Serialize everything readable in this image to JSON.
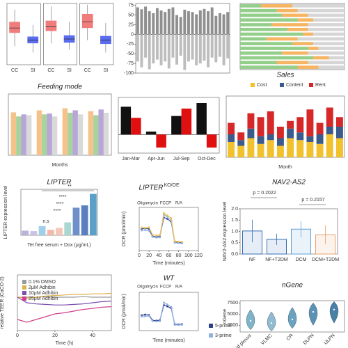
{
  "chart_data": [
    {
      "type": "box",
      "categories": [
        "CC",
        "SI",
        "CC",
        "SI",
        "CC",
        "SI"
      ],
      "colors": [
        "#f07c7c",
        "#5a6cf0"
      ],
      "ylim": [
        0,
        10
      ],
      "boxes": [
        {
          "min": 3,
          "q1": 5.2,
          "median": 6,
          "q3": 7,
          "max": 9
        },
        {
          "min": 2,
          "q1": 3.5,
          "median": 4,
          "q3": 4.6,
          "max": 6.5
        },
        {
          "min": 3.5,
          "q1": 5.5,
          "median": 6.2,
          "q3": 7.2,
          "max": 9.5
        },
        {
          "min": 2.5,
          "q1": 3.6,
          "median": 4.2,
          "q3": 4.8,
          "max": 7
        },
        {
          "min": 4,
          "q1": 6,
          "median": 7,
          "q3": 8.3,
          "max": 9.8
        },
        {
          "min": 2,
          "q1": 3.4,
          "median": 4,
          "q3": 4.7,
          "max": 6.8
        }
      ]
    },
    {
      "type": "bar",
      "stacked": true,
      "categories": [
        null,
        null,
        null,
        null,
        null,
        null,
        null,
        null,
        null,
        null,
        null,
        null,
        null,
        null,
        null,
        null,
        null,
        null,
        null,
        null,
        null,
        null,
        null,
        null
      ],
      "series": [
        {
          "color": "#8f8f8f",
          "values": [
            70,
            65,
            72,
            60,
            55,
            68,
            62,
            58,
            66,
            70,
            50,
            45,
            64,
            60,
            58,
            52,
            62,
            66,
            60,
            70,
            48,
            55,
            52,
            58
          ]
        },
        {
          "color": "#bdbdbd",
          "values": [
            -70,
            -85,
            -60,
            -90,
            -75,
            -65,
            -80,
            -70,
            -88,
            -60,
            -78,
            -55,
            -92,
            -70,
            -65,
            -80,
            -75,
            -68,
            -85,
            -60,
            -72,
            -58,
            -80,
            -62
          ]
        }
      ],
      "ylim": [
        -100,
        80
      ],
      "yticks": [
        75,
        50,
        25,
        0,
        -25,
        -50,
        -75,
        -100
      ]
    },
    {
      "type": "bar",
      "stacked": true,
      "horizontal": true,
      "categories": [
        null,
        null,
        null,
        null,
        null,
        null,
        null,
        null,
        null,
        null,
        null,
        null,
        null,
        null
      ],
      "xlim": [
        0,
        100
      ],
      "series": [
        {
          "color": "#93cf8a",
          "values": [
            20,
            35,
            40,
            55,
            30,
            45,
            60,
            25,
            50,
            65,
            40,
            70,
            35,
            55
          ]
        },
        {
          "color": "#f5b562",
          "values": [
            30,
            20,
            25,
            15,
            35,
            20,
            10,
            30,
            20,
            10,
            25,
            15,
            30,
            20
          ]
        },
        {
          "color": "#d6d6d6",
          "values": [
            50,
            45,
            35,
            30,
            35,
            35,
            30,
            45,
            30,
            25,
            35,
            15,
            35,
            25
          ]
        }
      ]
    },
    {
      "type": "bar",
      "title": "Feeding mode",
      "x_label": "Months",
      "categories": [
        null,
        null,
        null,
        null
      ],
      "ylim": [
        0,
        150
      ],
      "series": [
        {
          "color": "#f6c28b",
          "values": [
            105,
            110,
            115,
            108
          ]
        },
        {
          "color": "#a9d39e",
          "values": [
            95,
            100,
            104,
            98
          ]
        },
        {
          "color": "#b8a6d9",
          "values": [
            100,
            102,
            110,
            112
          ]
        },
        {
          "color": "#d9d9d9",
          "values": [
            98,
            95,
            100,
            104
          ]
        }
      ]
    },
    {
      "type": "bar",
      "categories": [
        "Jan-Mar",
        "Apr-Jun",
        "Jul-Sep",
        "Oct-Dec"
      ],
      "ylim": [
        -0.5,
        1
      ],
      "series": [
        {
          "color": "#111111",
          "values": [
            0.75,
            0.08,
            0.5,
            0.85
          ]
        },
        {
          "color": "#e01010",
          "values": [
            0.45,
            -0.35,
            0.7,
            -0.35
          ]
        }
      ]
    },
    {
      "type": "bar",
      "stacked": true,
      "title": "Sales",
      "x_label": "Month",
      "categories": [
        null,
        null,
        null,
        null,
        null,
        null,
        null,
        null,
        null,
        null,
        null,
        null
      ],
      "ylim": [
        0,
        1600
      ],
      "series": [
        {
          "name": "Cost",
          "color": "#f2c12e",
          "values": [
            400,
            300,
            500,
            350,
            450,
            300,
            500,
            450,
            400,
            350,
            600,
            500
          ]
        },
        {
          "name": "Content",
          "color": "#3b5b8c",
          "values": [
            200,
            150,
            250,
            200,
            150,
            200,
            250,
            200,
            150,
            250,
            200,
            300
          ]
        },
        {
          "name": "Rent",
          "color": "#d62828",
          "values": [
            300,
            200,
            400,
            500,
            600,
            300,
            200,
            400,
            700,
            300,
            500,
            250
          ]
        }
      ]
    },
    {
      "type": "bar",
      "title": "LIPTER",
      "y_label": "LIPTER expression level",
      "x_label": "Tet free serum + Dox (μg/mL)",
      "categories": [
        null,
        null,
        null,
        null,
        null,
        null,
        null,
        null,
        null
      ],
      "values": [
        1,
        0.9,
        2,
        1.2,
        1.6,
        2.8,
        6,
        6.5,
        9
      ],
      "colors": [
        "#b9b3d9",
        "#c9c4e6",
        "#9fd0e8",
        "#f2b8a8",
        "#f4c7b8",
        "#a8d8d0",
        "#6f8fc8",
        "#5a7fc0",
        "#5aa0c8"
      ],
      "ylim": [
        0,
        10
      ],
      "annotations": [
        "**",
        "****",
        "****",
        "****",
        "n.s"
      ]
    },
    {
      "type": "line",
      "title": "LIPTER",
      "title_sup": "KO/OE",
      "y_label": "OCR (pmol/min)",
      "x_label": "Time (minutes)",
      "annotations": [
        "Oligomycin",
        "FCCP",
        "R/A"
      ],
      "xlim": [
        0,
        120
      ],
      "xticks": [
        0,
        20,
        40,
        60,
        80,
        100,
        120
      ],
      "ylim": [
        0,
        300
      ],
      "x": [
        5,
        12,
        20,
        27,
        35,
        42,
        50,
        57,
        65,
        72,
        80,
        87
      ],
      "series": [
        {
          "color": "#3a4fa0",
          "values": [
            150,
            155,
            150,
            100,
            95,
            100,
            230,
            220,
            200,
            60,
            55,
            58
          ]
        },
        {
          "color": "#8fb0e0",
          "values": [
            140,
            142,
            138,
            95,
            90,
            92,
            250,
            235,
            210,
            55,
            52,
            50
          ]
        },
        {
          "color": "#f2c14e",
          "values": [
            160,
            158,
            162,
            110,
            105,
            108,
            260,
            245,
            225,
            65,
            62,
            60
          ]
        }
      ]
    },
    {
      "type": "bar",
      "title": "NAV2-AS2",
      "y_label": "NAV2-AS2 expression level",
      "annotations": [
        "p = 0.2022",
        "p = 0.2157"
      ],
      "categories": [
        "NF",
        "NF+T2DM",
        "DCM",
        "DCM+T2DM"
      ],
      "values": [
        1.02,
        0.65,
        1.1,
        0.85
      ],
      "errors": [
        0.5,
        0.25,
        0.35,
        0.42
      ],
      "colors": [
        "#2f6db5",
        "#2f6db5",
        "#5aa0d8",
        "#e6a06a"
      ],
      "ylim": [
        0,
        2
      ],
      "yticks": [
        {
          "value": 0,
          "label": "0.0"
        },
        {
          "value": 0.5,
          "label": "0.5"
        },
        {
          "value": 1,
          "label": "1.0"
        },
        {
          "value": 1.5,
          "label": "1.5"
        },
        {
          "value": 2,
          "label": "2.0"
        }
      ]
    },
    {
      "type": "line",
      "y_label": "relative TEER (CaCO-2)",
      "x_label": "Time (h)",
      "xlim": [
        0,
        50
      ],
      "xticks": [
        0,
        20,
        40
      ],
      "ylim": [
        0.4,
        1.4
      ],
      "x": [
        0,
        5,
        10,
        15,
        20,
        25,
        30,
        35,
        40,
        45,
        50
      ],
      "series": [
        {
          "name": "0.1% DMSO",
          "color": "#9a9a9a",
          "values": [
            1,
            1,
            1,
            1.01,
            1,
            1,
            1,
            1.01,
            1,
            1,
            1
          ]
        },
        {
          "name": "2μM Adhibin",
          "color": "#e0b04a",
          "values": [
            1,
            0.98,
            1,
            1.02,
            1.03,
            1.04,
            1.05,
            1.05,
            1.06,
            1.06,
            1.07
          ]
        },
        {
          "name": "10μM Adhibin",
          "color": "#7a4fb0",
          "values": [
            1,
            0.9,
            0.88,
            0.87,
            0.86,
            0.86,
            0.87,
            0.88,
            0.9,
            0.92,
            0.93
          ]
        },
        {
          "name": "25μM Adhibin",
          "color": "#d0408a",
          "values": [
            0.6,
            0.55,
            0.6,
            0.65,
            0.7,
            0.72,
            0.75,
            0.78,
            0.8,
            0.82,
            0.83
          ]
        }
      ]
    },
    {
      "type": "line",
      "title": "WT",
      "y_label": "OCR (pmol/min)",
      "x_label": "Time (minutes)",
      "annotations": [
        "Oligomycin",
        "FCCP",
        "R/A"
      ],
      "xlim": [
        0,
        120
      ],
      "ylim": [
        0,
        300
      ],
      "x": [
        5,
        12,
        20,
        27,
        35,
        42,
        50,
        57,
        65,
        72,
        80,
        87
      ],
      "series": [
        {
          "name": "5-prime",
          "color": "#2c3e8c",
          "values": [
            120,
            125,
            122,
            80,
            78,
            82,
            200,
            190,
            175,
            50,
            48,
            50
          ]
        },
        {
          "name": "3-prime",
          "color": "#8fb0e0",
          "values": [
            110,
            112,
            115,
            75,
            72,
            74,
            220,
            205,
            185,
            45,
            44,
            46
          ]
        }
      ]
    },
    {
      "type": "violin",
      "title": "nGene",
      "y_label": "nGene",
      "categories": [
        "Choroid plexus",
        "VLMC",
        "CR",
        "DLPN",
        "ULPN"
      ],
      "values": [
        3500,
        3000,
        3800,
        5500,
        6000
      ],
      "ranges": [
        [
          1500,
          6000
        ],
        [
          1200,
          5500
        ],
        [
          1800,
          6500
        ],
        [
          2500,
          7500
        ],
        [
          3000,
          7800
        ]
      ],
      "colors": [
        "#7fb3c8",
        "#8fbcd0",
        "#6aa3c0",
        "#5b93b5",
        "#4a7fa8"
      ],
      "ylim": [
        1000,
        8000
      ],
      "yticks": [
        2500,
        5000,
        7500
      ]
    }
  ]
}
